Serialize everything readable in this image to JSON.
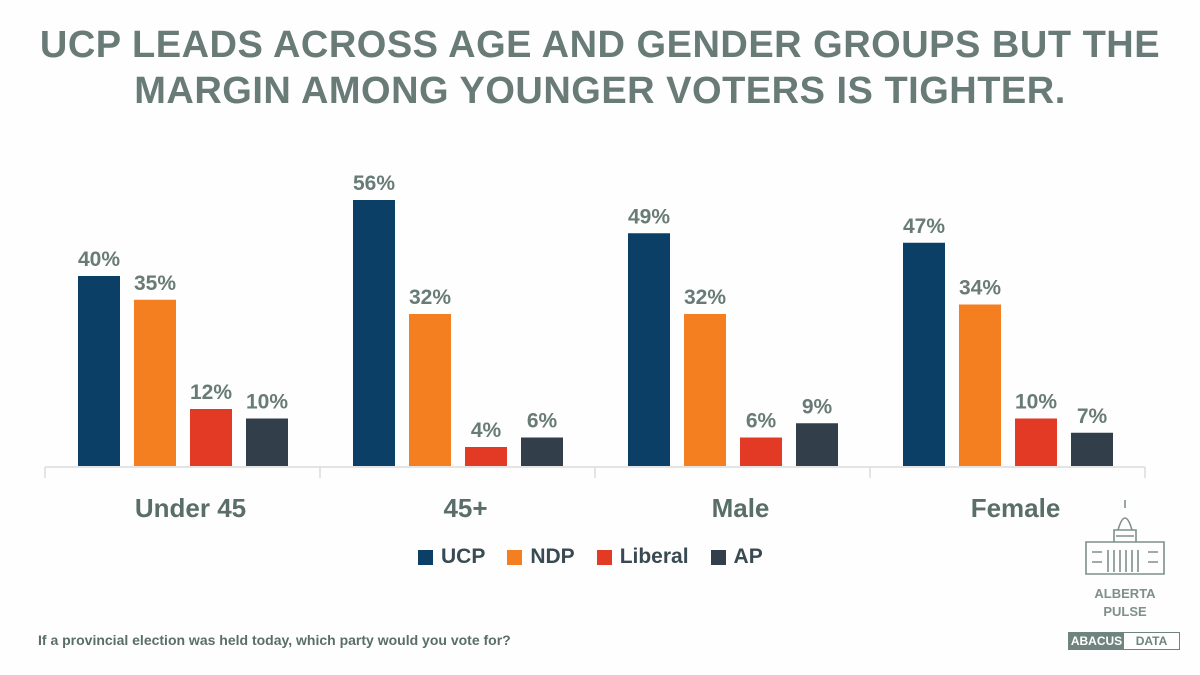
{
  "title_lines": [
    "UCP LEADS ACROSS AGE AND GENDER GROUPS BUT THE",
    "MARGIN AMONG YOUNGER VOTERS IS TIGHTER."
  ],
  "question": "If a provincial election was held today, which party would you vote for?",
  "logo": {
    "line1": "ALBERTA",
    "line2": "PULSE",
    "brand_left": "ABACUS",
    "brand_right": "DATA"
  },
  "chart_data": {
    "type": "bar",
    "title": "UCP LEADS ACROSS AGE AND GENDER GROUPS BUT THE MARGIN AMONG YOUNGER VOTERS IS TIGHTER.",
    "categories": [
      "Under 45",
      "45+",
      "Male",
      "Female"
    ],
    "series": [
      {
        "name": "UCP",
        "color": "#0b3f66",
        "values": [
          40,
          56,
          49,
          47
        ]
      },
      {
        "name": "NDP",
        "color": "#f47f20",
        "values": [
          35,
          32,
          32,
          34
        ]
      },
      {
        "name": "Liberal",
        "color": "#e23a24",
        "values": [
          12,
          4,
          6,
          10
        ]
      },
      {
        "name": "AP",
        "color": "#323f4a",
        "values": [
          10,
          6,
          9,
          7
        ]
      }
    ],
    "value_suffix": "%",
    "ylim": [
      0,
      60
    ],
    "grid": false,
    "legend_placement": "bottom"
  }
}
